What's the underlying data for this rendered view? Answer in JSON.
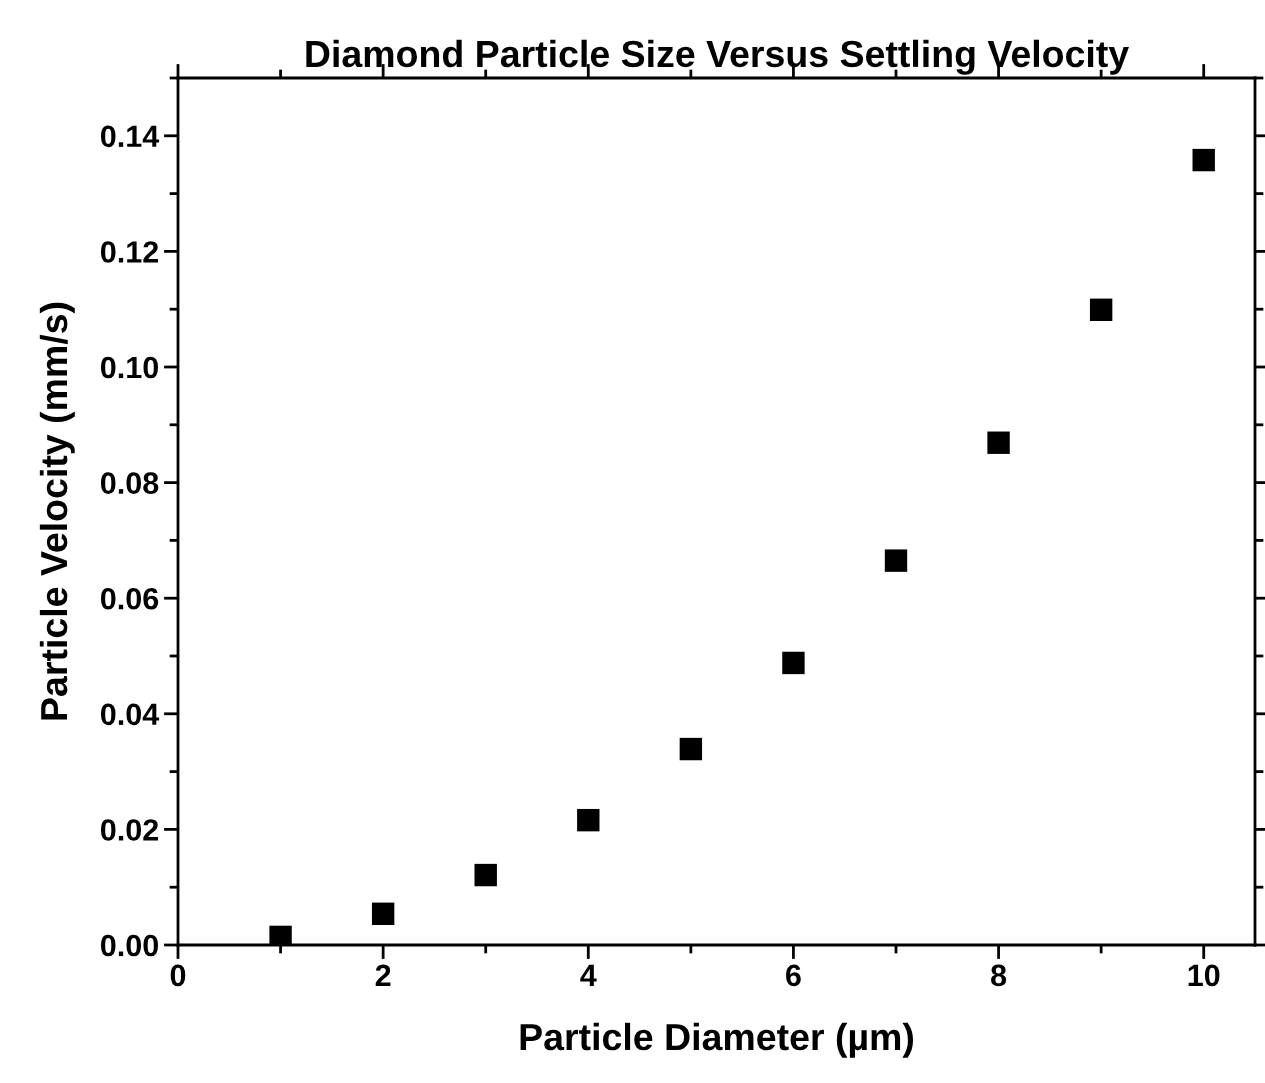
{
  "chart_data": {
    "type": "scatter",
    "title": "Diamond Particle Size Versus Settling Velocity",
    "xlabel": "Particle Diameter (µm)",
    "ylabel": "Particle Velocity (mm/s)",
    "x": [
      1,
      2,
      3,
      4,
      5,
      6,
      7,
      8,
      9,
      10
    ],
    "series": [
      {
        "color": "#000000",
        "values": [
          0.0014,
          0.0054,
          0.0121,
          0.0216,
          0.0339,
          0.0488,
          0.0665,
          0.0869,
          0.1099,
          0.1358
        ]
      }
    ],
    "marker": "square",
    "grid": false,
    "xlim": [
      0,
      10.5
    ],
    "xticks": [
      0,
      2,
      4,
      6,
      8,
      10
    ],
    "ylim": [
      0,
      0.15
    ],
    "yticks": [
      {
        "value": 0,
        "label": "0.00"
      },
      {
        "value": 0.02,
        "label": "0.02"
      },
      {
        "value": 0.04,
        "label": "0.04"
      },
      {
        "value": 0.06,
        "label": "0.06"
      },
      {
        "value": 0.08,
        "label": "0.08"
      },
      {
        "value": 0.1,
        "label": "0.10"
      },
      {
        "value": 0.12,
        "label": "0.12"
      },
      {
        "value": 0.14,
        "label": "0.14"
      }
    ]
  }
}
